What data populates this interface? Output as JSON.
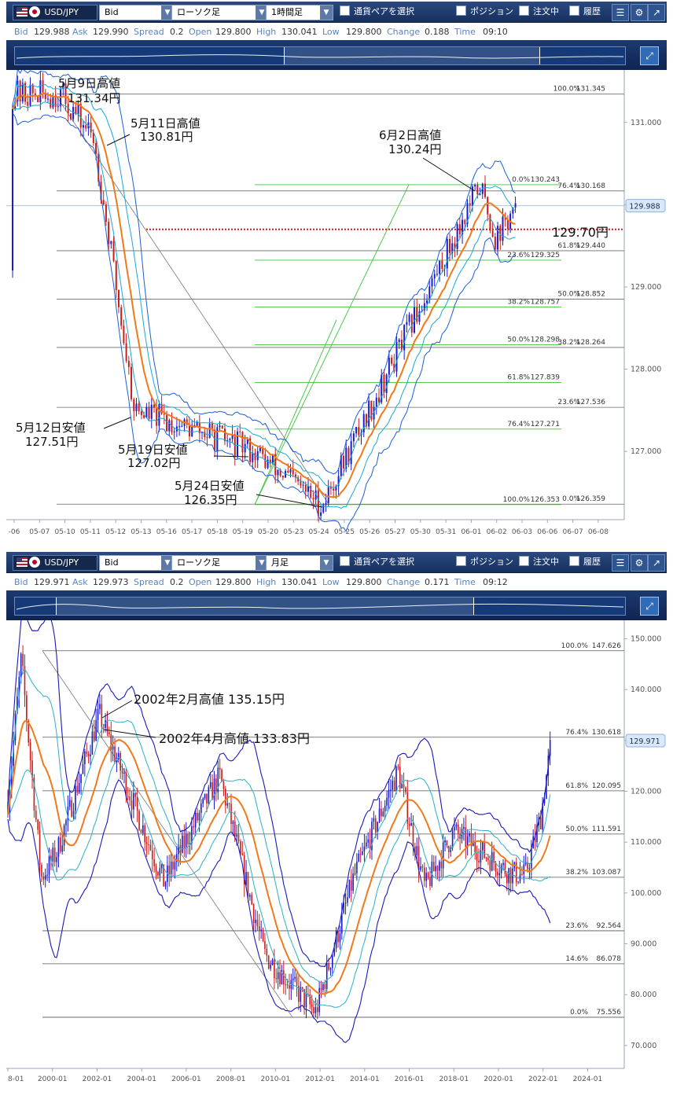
{
  "panels": [
    {
      "toolbar": {
        "symbol": "USD/JPY",
        "price_type": "Bid",
        "chart_style": "ローソク足",
        "timeframe": "1時間足",
        "pair_select": "通貨ペアを選択",
        "positions": "ポジション",
        "orders": "注文中",
        "history": "履歴"
      },
      "info": {
        "bid_label": "Bid",
        "bid": "129.988",
        "ask_label": "Ask",
        "ask": "129.990",
        "spread_label": "Spread",
        "spread": "0.2",
        "open_label": "Open",
        "open": "129.800",
        "high_label": "High",
        "high": "130.041",
        "low_label": "Low",
        "low": "129.800",
        "change_label": "Change",
        "change": "0.188",
        "time_label": "Time",
        "time": "09:10"
      }
    },
    {
      "toolbar": {
        "symbol": "USD/JPY",
        "price_type": "Bid",
        "chart_style": "ローソク足",
        "timeframe": "月足",
        "pair_select": "通貨ペアを選択",
        "positions": "ポジション",
        "orders": "注文中",
        "history": "履歴"
      },
      "info": {
        "bid_label": "Bid",
        "bid": "129.971",
        "ask_label": "Ask",
        "ask": "129.973",
        "spread_label": "Spread",
        "spread": "0.2",
        "open_label": "Open",
        "open": "129.800",
        "high_label": "High",
        "high": "130.041",
        "low_label": "Low",
        "low": "129.800",
        "change_label": "Change",
        "change": "0.171",
        "time_label": "Time",
        "time": "09:12"
      }
    }
  ],
  "colors": {
    "candle_up": "#1b1bd1",
    "candle_down": "#c81e1e",
    "ma": "#f07a1a",
    "band_outer": "#1a5fd8",
    "band_inner": "#19a7d6",
    "fib_green": "#3ec43e",
    "level_red": "#d41a1a",
    "monthly_outer": "#1a1ab8",
    "monthly_inner": "#2ab0c8"
  },
  "chart_data": [
    {
      "type": "candlestick",
      "timeframe": "1時間足",
      "ylim": [
        126.17,
        131.6
      ],
      "x_ticks": [
        "-06",
        "05-07",
        "05-10",
        "05-11",
        "05-12",
        "05-13",
        "05-16",
        "05-17",
        "05-18",
        "05-19",
        "05-20",
        "05-23",
        "05-24",
        "05-25",
        "05-26",
        "05-27",
        "05-30",
        "05-31",
        "06-01",
        "06-02",
        "06-03",
        "06-06",
        "06-07",
        "06-08"
      ],
      "y_ticks": [
        "131.000",
        "130.000",
        "129.000",
        "128.000",
        "127.000"
      ],
      "current_price": "129.988",
      "key_points": [
        {
          "x": 1.9,
          "y": 131.34
        },
        {
          "x": 3.2,
          "y": 130.81
        },
        {
          "x": 4.8,
          "y": 127.51
        },
        {
          "x": 9.4,
          "y": 127.02
        },
        {
          "x": 12.2,
          "y": 126.35
        },
        {
          "x": 18.4,
          "y": 130.24
        },
        {
          "x": 19.0,
          "y": 129.6
        },
        {
          "x": 19.7,
          "y": 129.9
        }
      ],
      "start_price": 129.2,
      "annotations": [
        {
          "line1": "5月9日高値",
          "line2": "131.34円"
        },
        {
          "line1": "5月11日高値",
          "line2": "130.81円"
        },
        {
          "line1": "6月2日高値",
          "line2": "130.24円"
        },
        {
          "line1": "129.70円",
          "line2": ""
        },
        {
          "line1": "5月12日安値",
          "line2": "127.51円"
        },
        {
          "line1": "5月19日安値",
          "line2": "127.02円"
        },
        {
          "line1": "5月24日安値",
          "line2": "126.35円"
        }
      ],
      "fib_gray": [
        {
          "pct": "100.0%",
          "val": "131.345",
          "y": 131.345
        },
        {
          "pct": "76.4%",
          "val": "130.168",
          "y": 130.168
        },
        {
          "pct": "61.8%",
          "val": "129.440",
          "y": 129.44
        },
        {
          "pct": "50.0%",
          "val": "128.852",
          "y": 128.852
        },
        {
          "pct": "38.2%",
          "val": "128.264",
          "y": 128.264
        },
        {
          "pct": "23.6%",
          "val": "127.536",
          "y": 127.536
        },
        {
          "pct": "0.0%",
          "val": "126.359",
          "y": 126.359
        }
      ],
      "fib_green": [
        {
          "pct": "0.0%",
          "val": "130.243",
          "y": 130.243
        },
        {
          "pct": "23.6%",
          "val": "129.325",
          "y": 129.325
        },
        {
          "pct": "38.2%",
          "val": "128.757",
          "y": 128.757
        },
        {
          "pct": "50.0%",
          "val": "128.298",
          "y": 128.298
        },
        {
          "pct": "61.8%",
          "val": "127.839",
          "y": 127.839
        },
        {
          "pct": "76.4%",
          "val": "127.271",
          "y": 127.271
        },
        {
          "pct": "100.0%",
          "val": "126.353",
          "y": 126.353
        }
      ],
      "red_level": 129.7
    },
    {
      "type": "candlestick",
      "timeframe": "月足",
      "ylim": [
        65.5,
        153
      ],
      "x_ticks": [
        "8-01",
        "2000-01",
        "2002-01",
        "2004-01",
        "2006-01",
        "2008-01",
        "2010-01",
        "2012-01",
        "2014-01",
        "2016-01",
        "2018-01",
        "2020-01",
        "2022-01",
        "2024-01"
      ],
      "y_ticks": [
        "150.000",
        "140.000",
        "130.000",
        "120.000",
        "110.000",
        "100.000",
        "90.000",
        "80.000",
        "70.000"
      ],
      "current_price": "129.971",
      "key_points": [
        {
          "x": 1998.0,
          "y": 118
        },
        {
          "x": 1998.6,
          "y": 146
        },
        {
          "x": 1999.5,
          "y": 103
        },
        {
          "x": 2000.2,
          "y": 108
        },
        {
          "x": 2002.1,
          "y": 135.15
        },
        {
          "x": 2005.0,
          "y": 102
        },
        {
          "x": 2007.5,
          "y": 123
        },
        {
          "x": 2009.5,
          "y": 88
        },
        {
          "x": 2011.8,
          "y": 76.5
        },
        {
          "x": 2013.5,
          "y": 103
        },
        {
          "x": 2015.5,
          "y": 124
        },
        {
          "x": 2016.7,
          "y": 101
        },
        {
          "x": 2018.0,
          "y": 112
        },
        {
          "x": 2020.5,
          "y": 104
        },
        {
          "x": 2021.2,
          "y": 103.5
        },
        {
          "x": 2021.9,
          "y": 115
        },
        {
          "x": 2022.4,
          "y": 131
        }
      ],
      "annotations": [
        {
          "line1": "2002年2月高値 135.15円"
        },
        {
          "line1": "2002年4月高値 133.83円"
        }
      ],
      "fib_gray": [
        {
          "pct": "100.0%",
          "val": "147.626",
          "y": 147.626
        },
        {
          "pct": "76.4%",
          "val": "130.618",
          "y": 130.618
        },
        {
          "pct": "61.8%",
          "val": "120.095",
          "y": 120.095
        },
        {
          "pct": "50.0%",
          "val": "111.591",
          "y": 111.591
        },
        {
          "pct": "38.2%",
          "val": "103.087",
          "y": 103.087
        },
        {
          "pct": "23.6%",
          "val": "92.564",
          "y": 92.564
        },
        {
          "pct": "14.6%",
          "val": "86.078",
          "y": 86.078
        },
        {
          "pct": "0.0%",
          "val": "75.556",
          "y": 75.556
        }
      ]
    }
  ]
}
